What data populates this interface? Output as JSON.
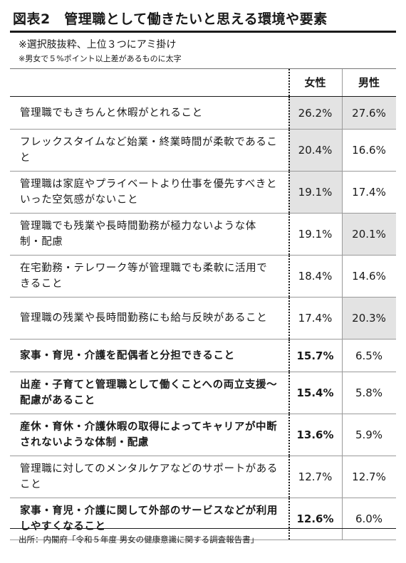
{
  "title": "図表2　管理職として働きたいと思える環境や要素",
  "notes": {
    "line1": "※選択肢抜粋、上位３つにアミ掛け",
    "line2": "※男女で５%ポイント以上差があるものに太字"
  },
  "columns": {
    "female": "女性",
    "male": "男性"
  },
  "rows": [
    {
      "label": "管理職でもきちんと休暇がとれること",
      "female": "26.2%",
      "male": "27.6%"
    },
    {
      "label": "フレックスタイムなど始業・終業時間が柔軟であること",
      "female": "20.4%",
      "male": "16.6%"
    },
    {
      "label": "管理職は家庭やプライベートより仕事を優先すべきといった空気感がないこと",
      "female": "19.1%",
      "male": "17.4%"
    },
    {
      "label": "管理職でも残業や長時間勤務が極力ないような体制・配慮",
      "female": "19.1%",
      "male": "20.1%"
    },
    {
      "label": "在宅勤務・テレワーク等が管理職でも柔軟に活用できること",
      "female": "18.4%",
      "male": "14.6%"
    },
    {
      "label": "管理職の残業や長時間勤務にも給与反映があること",
      "female": "17.4%",
      "male": "20.3%"
    },
    {
      "label": "家事・育児・介護を配偶者と分担できること",
      "female": "15.7%",
      "male": "6.5%"
    },
    {
      "label": "出産・子育てと管理職として働くことへの両立支援～配慮があること",
      "female": "15.4%",
      "male": "5.8%"
    },
    {
      "label": "産休・育休・介護休暇の取得によってキャリアが中断されないような体制・配慮",
      "female": "13.6%",
      "male": "5.9%"
    },
    {
      "label": "管理職に対してのメンタルケアなどのサポートがあること",
      "female": "12.7%",
      "male": "12.7%"
    },
    {
      "label": "家事・育児・介護に関して外部のサービスなどが利用しやすくなること",
      "female": "12.6%",
      "male": "6.0%"
    }
  ],
  "source": "出所：内閣府「令和５年度 男女の健康意識に関する調査報告書」"
}
